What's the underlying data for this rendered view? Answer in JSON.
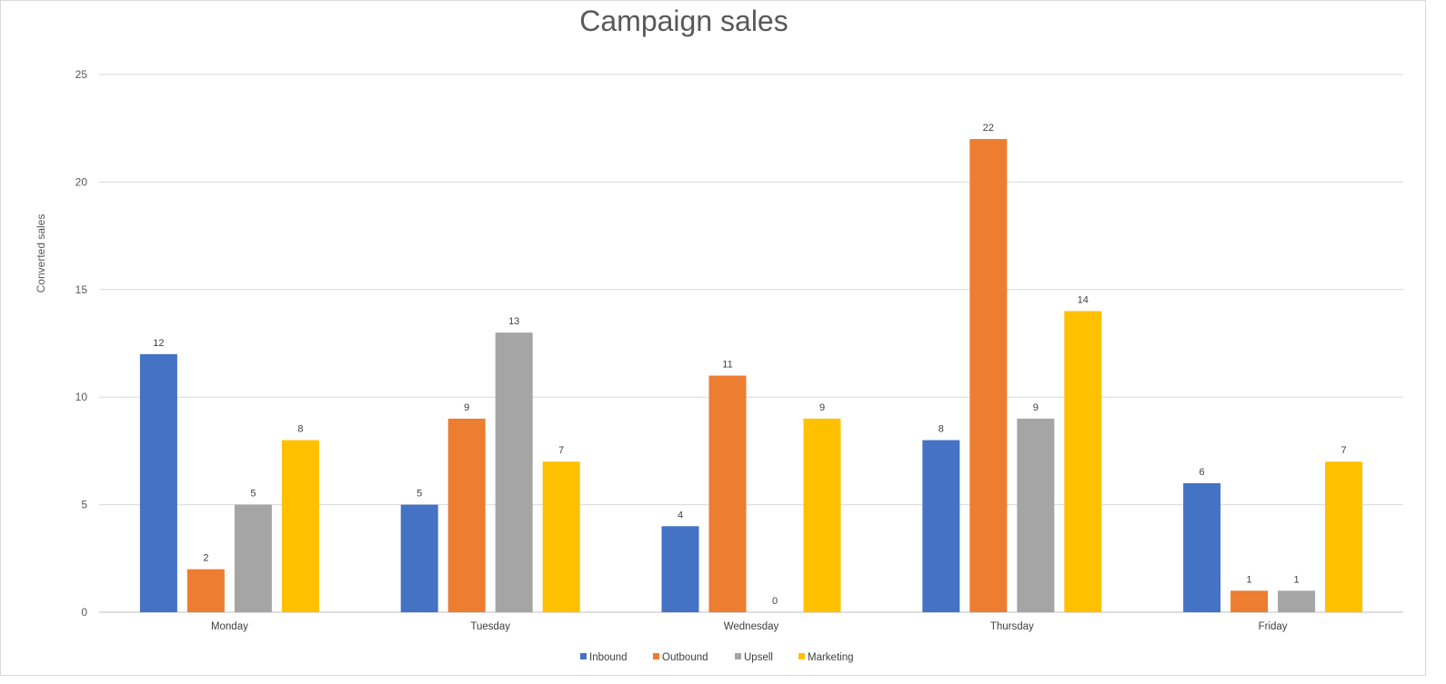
{
  "chart_data": {
    "type": "bar",
    "title": "Campaign sales",
    "xlabel": "",
    "ylabel": "Converted sales",
    "ylim": [
      0,
      25
    ],
    "yticks": [
      0,
      5,
      10,
      15,
      20,
      25
    ],
    "grid": true,
    "legend_position": "bottom",
    "categories": [
      "Monday",
      "Tuesday",
      "Wednesday",
      "Thursday",
      "Friday"
    ],
    "series": [
      {
        "name": "Inbound",
        "color": "#4472c4",
        "values": [
          12,
          5,
          4,
          8,
          6
        ]
      },
      {
        "name": "Outbound",
        "color": "#ed7d31",
        "values": [
          2,
          9,
          11,
          22,
          1
        ]
      },
      {
        "name": "Upsell",
        "color": "#a5a5a5",
        "values": [
          5,
          13,
          0,
          9,
          1
        ]
      },
      {
        "name": "Marketing",
        "color": "#ffc000",
        "values": [
          8,
          7,
          9,
          14,
          7
        ]
      }
    ]
  }
}
